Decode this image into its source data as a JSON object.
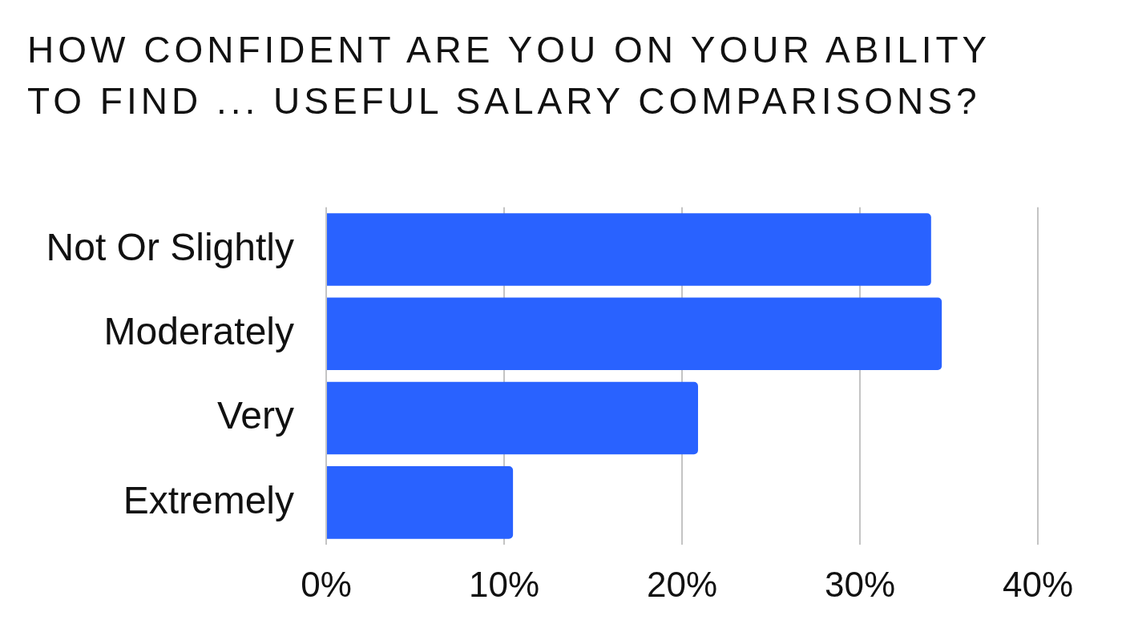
{
  "chart_data": {
    "type": "bar",
    "orientation": "horizontal",
    "title": "HOW CONFIDENT ARE YOU ON YOUR ABILITY TO FIND ... USEFUL SALARY COMPARISONS?",
    "categories": [
      "Not Or Slightly",
      "Moderately",
      "Very",
      "Extremely"
    ],
    "values": [
      34,
      34.6,
      20.9,
      10.5
    ],
    "color": "#2962ff",
    "xlim": [
      0,
      40
    ],
    "xticks": [
      {
        "value": 0,
        "label": "0%"
      },
      {
        "value": 10,
        "label": "10%"
      },
      {
        "value": 20,
        "label": "20%"
      },
      {
        "value": 30,
        "label": "30%"
      },
      {
        "value": 40,
        "label": "40%"
      }
    ],
    "grid": "x",
    "legend": false
  }
}
